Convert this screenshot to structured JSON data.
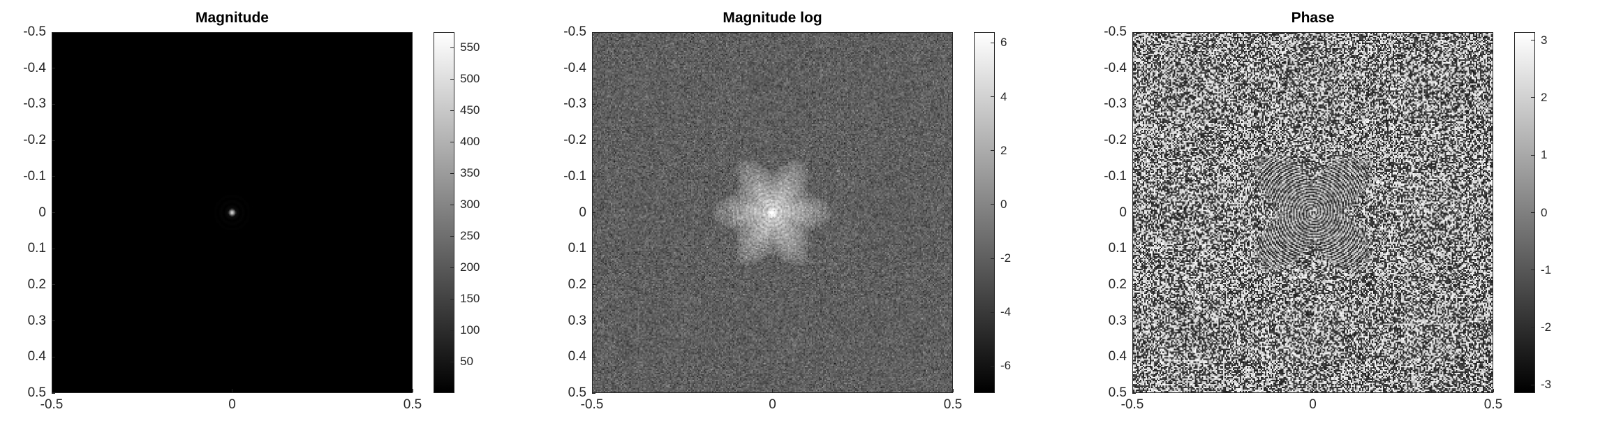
{
  "chart_data": [
    {
      "type": "heatmap",
      "title": "Magnitude",
      "colormap": "gray",
      "x_ticks": [
        "-0.5",
        "0",
        "0.5"
      ],
      "x_tick_values": [
        -0.5,
        0,
        0.5
      ],
      "y_ticks": [
        "-0.5",
        "-0.4",
        "-0.3",
        "-0.2",
        "-0.1",
        "0",
        "0.1",
        "0.2",
        "0.3",
        "0.4",
        "0.5"
      ],
      "y_tick_values": [
        -0.5,
        -0.4,
        -0.3,
        -0.2,
        -0.1,
        0,
        0.1,
        0.2,
        0.3,
        0.4,
        0.5
      ],
      "xlim": [
        -0.5,
        0.5
      ],
      "ylim": [
        -0.5,
        0.5
      ],
      "y_direction": "reverse",
      "colorbar": {
        "range": [
          0,
          575
        ],
        "ticks": [
          "50",
          "100",
          "150",
          "200",
          "250",
          "300",
          "350",
          "400",
          "450",
          "500",
          "550"
        ],
        "tick_values": [
          50,
          100,
          150,
          200,
          250,
          300,
          350,
          400,
          450,
          500,
          550
        ]
      },
      "description_pattern": "dark-with-center-peak"
    },
    {
      "type": "heatmap",
      "title": "Magnitude log",
      "colormap": "gray",
      "x_ticks": [
        "-0.5",
        "0",
        "0.5"
      ],
      "x_tick_values": [
        -0.5,
        0,
        0.5
      ],
      "y_ticks": [
        "-0.5",
        "-0.4",
        "-0.3",
        "-0.2",
        "-0.1",
        "0",
        "0.1",
        "0.2",
        "0.3",
        "0.4",
        "0.5"
      ],
      "y_tick_values": [
        -0.5,
        -0.4,
        -0.3,
        -0.2,
        -0.1,
        0,
        0.1,
        0.2,
        0.3,
        0.4,
        0.5
      ],
      "xlim": [
        -0.5,
        0.5
      ],
      "ylim": [
        -0.5,
        0.5
      ],
      "y_direction": "reverse",
      "colorbar": {
        "range": [
          -7,
          6.4
        ],
        "ticks": [
          "-6",
          "-4",
          "-2",
          "0",
          "2",
          "4",
          "6"
        ],
        "tick_values": [
          -6,
          -4,
          -2,
          0,
          2,
          4,
          6
        ]
      },
      "description_pattern": "gray-noise-with-bright-center-blob"
    },
    {
      "type": "heatmap",
      "title": "Phase",
      "colormap": "gray",
      "x_ticks": [
        "-0.5",
        "0",
        "0.5"
      ],
      "x_tick_values": [
        -0.5,
        0,
        0.5
      ],
      "y_ticks": [
        "-0.5",
        "-0.4",
        "-0.3",
        "-0.2",
        "-0.1",
        "0",
        "0.1",
        "0.2",
        "0.3",
        "0.4",
        "0.5"
      ],
      "y_tick_values": [
        -0.5,
        -0.4,
        -0.3,
        -0.2,
        -0.1,
        0,
        0.1,
        0.2,
        0.3,
        0.4,
        0.5
      ],
      "xlim": [
        -0.5,
        0.5
      ],
      "ylim": [
        -0.5,
        0.5
      ],
      "y_direction": "reverse",
      "colorbar": {
        "range": [
          -3.1416,
          3.1416
        ],
        "ticks": [
          "-3",
          "-2",
          "-1",
          "0",
          "1",
          "2",
          "3"
        ],
        "tick_values": [
          -3,
          -2,
          -1,
          0,
          1,
          2,
          3
        ]
      },
      "description_pattern": "random-noise-with-center-fringes"
    }
  ]
}
